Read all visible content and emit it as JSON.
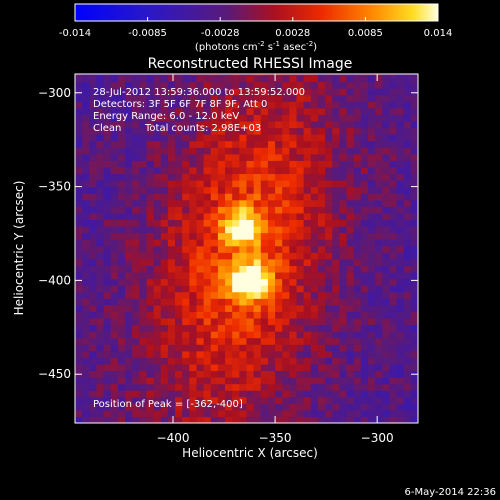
{
  "chart_data": {
    "type": "heatmap",
    "title": "Reconstructed RHESSI Image",
    "colorbar": {
      "ticks": [
        "-0.014",
        "-0.0085",
        "-0.0028",
        "0.0028",
        "0.0085",
        "0.014"
      ],
      "range": [
        -0.014,
        0.014
      ],
      "unit_label": "(photons cm",
      "unit_exp1": "-2",
      "unit_mid": " s",
      "unit_exp2": "-1",
      "unit_mid2": " asec",
      "unit_exp3": "-2",
      "unit_close": ")"
    },
    "annotations": {
      "line1": "28-Jul-2012 13:59:36.000 to 13:59:52.000",
      "line2": "Detectors: 3F 5F 6F 7F 8F 9F, Att 0",
      "line3": "Energy Range: 6.0 - 12.0 keV",
      "line4_a": "Clean",
      "line4_b": "Total counts: 2.98E+03",
      "peak": "Position of Peak = [-362,-400]"
    },
    "xlabel": "Heliocentric X (arcsec)",
    "ylabel": "Heliocentric Y (arcsec)",
    "xlim": [
      -448,
      -280
    ],
    "ylim": [
      -476,
      -290
    ],
    "xticks": [
      -400,
      -350,
      -300
    ],
    "xtick_labels": [
      "−400",
      "−350",
      "−300"
    ],
    "yticks": [
      -300,
      -350,
      -400,
      -450
    ],
    "ytick_labels": [
      "−300",
      "−350",
      "−400",
      "−450"
    ],
    "sources": [
      {
        "x": -362,
        "y": -400,
        "peak": 0.014
      },
      {
        "x": -366,
        "y": -371,
        "peak": 0.011
      }
    ],
    "colormap": "blue-purple-red-yellow-white"
  },
  "footer": {
    "date": "6-May-2014 22:36"
  }
}
